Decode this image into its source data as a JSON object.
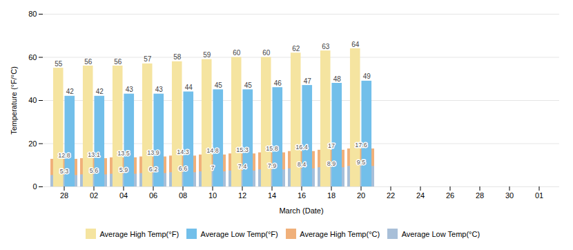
{
  "chart_data": {
    "type": "bar",
    "xlabel": "March (Date)",
    "ylabel": "Temperature (°F/°C)",
    "categories": [
      "28",
      "02",
      "04",
      "06",
      "08",
      "10",
      "12",
      "14",
      "16",
      "18",
      "20",
      "22",
      "24",
      "26",
      "28",
      "30",
      "01"
    ],
    "series": [
      {
        "name": "Average High Temp(°F)",
        "color": "#F5E4A0",
        "values": [
          55,
          56,
          56,
          57,
          58,
          59,
          60,
          60,
          62,
          63,
          64,
          null,
          null,
          null,
          null,
          null,
          null
        ]
      },
      {
        "name": "Average Low Temp(°F)",
        "color": "#72BFEA",
        "values": [
          42,
          42,
          43,
          43,
          44,
          45,
          45,
          46,
          47,
          48,
          49,
          null,
          null,
          null,
          null,
          null,
          null
        ]
      },
      {
        "name": "Average High Temp(°C)",
        "color": "#F0B07A",
        "values": [
          12.8,
          13.1,
          13.5,
          13.9,
          14.3,
          14.8,
          15.3,
          15.8,
          16.4,
          17.0,
          17.6,
          null,
          null,
          null,
          null,
          null,
          null
        ]
      },
      {
        "name": "Average Low Temp(°C)",
        "color": "#A8BFD8",
        "values": [
          5.3,
          5.6,
          5.9,
          6.2,
          6.6,
          7.0,
          7.4,
          7.9,
          8.4,
          8.9,
          9.5,
          null,
          null,
          null,
          null,
          null,
          null
        ]
      }
    ],
    "ylim": [
      0,
      80
    ],
    "yticks": [
      0,
      20,
      40,
      60,
      80
    ],
    "grid": true,
    "legend": "bottom",
    "data_labels": true
  }
}
